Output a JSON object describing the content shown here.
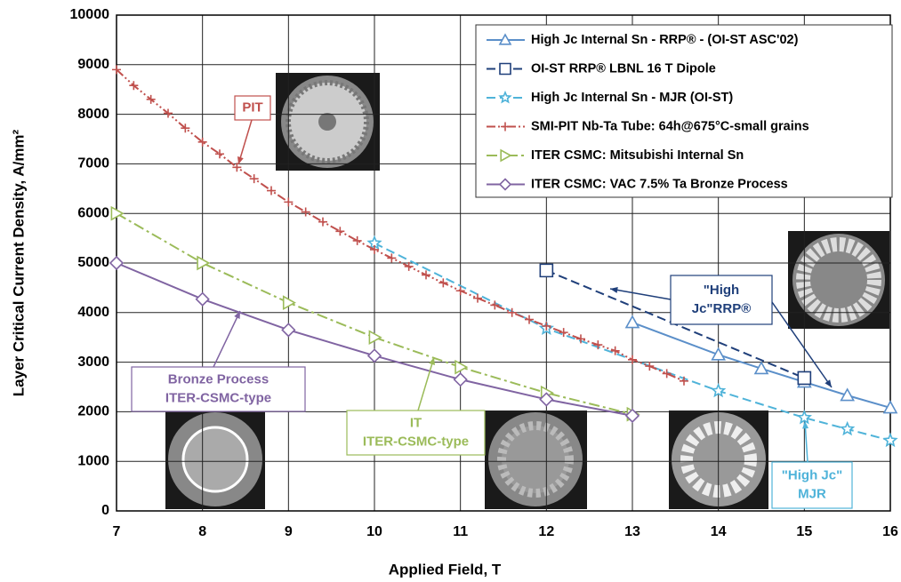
{
  "chart_data": {
    "type": "line",
    "x_label": "Applied Field, T",
    "y_label": "Layer Critical Current Density, A/mm²",
    "xlim": [
      7,
      16
    ],
    "xticks": [
      7,
      8,
      9,
      10,
      11,
      12,
      13,
      14,
      15,
      16
    ],
    "ylim": [
      0,
      10000
    ],
    "yticks": [
      0,
      1000,
      2000,
      3000,
      4000,
      5000,
      6000,
      7000,
      8000,
      9000,
      10000
    ],
    "grid": true,
    "legend": "upper right",
    "series": [
      {
        "name": "High Jc Internal Sn - RRP® - (OI-ST ASC'02)",
        "color": "#5b8fc9",
        "marker": "triangle",
        "linestyle": "solid",
        "x": [
          13,
          14,
          14.5,
          15,
          15.5,
          16
        ],
        "values": [
          3800,
          3150,
          2870,
          2600,
          2330,
          2080
        ]
      },
      {
        "name": "OI-ST RRP® LBNL 16 T Dipole",
        "color": "#1f3f7a",
        "marker": "square",
        "linestyle": "dashed",
        "x": [
          12,
          15
        ],
        "values": [
          4850,
          2680
        ]
      },
      {
        "name": "High Jc Internal Sn - MJR (OI-ST)",
        "color": "#4fb3d9",
        "marker": "star",
        "linestyle": "dashed",
        "x": [
          10,
          12,
          14,
          15,
          15.5,
          16
        ],
        "values": [
          5400,
          3680,
          2420,
          1880,
          1650,
          1420
        ]
      },
      {
        "name": "SMI-PIT Nb-Ta Tube: 64h@675°C-small grains",
        "color": "#c0504d",
        "marker": "plus",
        "linestyle": "dashdotdot",
        "x": [
          7,
          7.2,
          7.4,
          7.6,
          7.8,
          8,
          8.2,
          8.4,
          8.6,
          8.8,
          9,
          9.2,
          9.4,
          9.6,
          9.8,
          10,
          10.2,
          10.4,
          10.6,
          10.8,
          11,
          11.2,
          11.4,
          11.6,
          11.8,
          12,
          12.2,
          12.4,
          12.6,
          12.8,
          13,
          13.2,
          13.4,
          13.6
        ],
        "values": [
          8900,
          8580,
          8300,
          8020,
          7720,
          7440,
          7200,
          6930,
          6700,
          6460,
          6230,
          6030,
          5830,
          5640,
          5450,
          5270,
          5100,
          4930,
          4760,
          4600,
          4440,
          4290,
          4150,
          4000,
          3860,
          3730,
          3600,
          3470,
          3350,
          3230,
          3050,
          2920,
          2770,
          2620
        ]
      },
      {
        "name": "ITER CSMC: Mitsubishi Internal Sn",
        "color": "#9bbb59",
        "marker": "triangle-right",
        "linestyle": "dashdot",
        "x": [
          7,
          8,
          9,
          10,
          11,
          12,
          13
        ],
        "values": [
          6000,
          5000,
          4200,
          3500,
          2900,
          2380,
          1950
        ]
      },
      {
        "name": "ITER CSMC: VAC 7.5% Ta Bronze Process",
        "color": "#8064a2",
        "marker": "diamond",
        "linestyle": "solid",
        "x": [
          7,
          8,
          9,
          10,
          11,
          12,
          13
        ],
        "values": [
          5000,
          4270,
          3650,
          3130,
          2650,
          2250,
          1920
        ]
      }
    ],
    "annotations": [
      {
        "lines": [
          "PIT"
        ],
        "color": "#c0504d"
      },
      {
        "lines": [
          "Bronze Process",
          "ITER-CSMC-type"
        ],
        "color": "#8064a2"
      },
      {
        "lines": [
          "IT",
          "ITER-CSMC-type"
        ],
        "color": "#9bbb59"
      },
      {
        "lines": [
          "\"High",
          "Jc\"RRP®"
        ],
        "color": "#1f3f7a"
      },
      {
        "lines": [
          "\"High Jc\"",
          "MJR"
        ],
        "color": "#4fb3d9"
      }
    ]
  }
}
